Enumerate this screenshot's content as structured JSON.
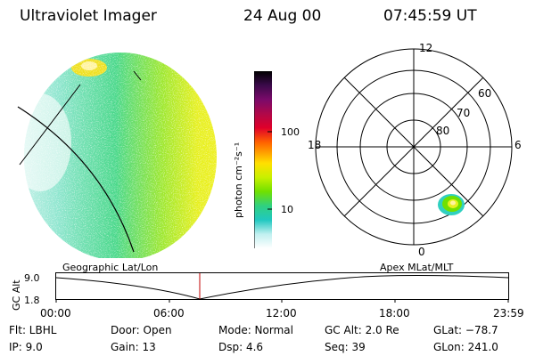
{
  "header": {
    "title": "Ultraviolet Imager",
    "date": "24 Aug 00",
    "time": "07:45:59 UT"
  },
  "colorbar": {
    "label": "photon cm⁻²s⁻¹",
    "ticks": [
      "100",
      "10"
    ],
    "colors": [
      "#000000",
      "#3b0a4a",
      "#7a0a6a",
      "#b0084a",
      "#e0002a",
      "#ff6000",
      "#ffa000",
      "#ffe000",
      "#c8f000",
      "#70e000",
      "#30d080",
      "#20c8c0",
      "#c0f0f0",
      "#ffffff"
    ]
  },
  "polar": {
    "labels": {
      "top": "12",
      "left": "18",
      "right": "6",
      "bottom": "0",
      "r60": "60",
      "r70": "70",
      "r80": "80"
    }
  },
  "timeline": {
    "y_label": "GC Alt",
    "y_top": "9.0",
    "y_bottom": "1.8",
    "left_title": "Geographic Lat/Lon",
    "right_title": "Apex MLat/MLT",
    "ticks": [
      "00:00",
      "06:00",
      "12:00",
      "18:00",
      "23:59"
    ]
  },
  "info": {
    "flt": "Flt: LBHL",
    "ip": "IP:  9.0",
    "door": "Door: Open",
    "gain": "Gain: 13",
    "mode": "Mode: Normal",
    "dsp": "Dsp:    4.6",
    "gcalt": "GC Alt: 2.0 Re",
    "seq": "Seq: 39",
    "glat": "GLat: −78.7",
    "glon": "GLon: 241.0"
  }
}
